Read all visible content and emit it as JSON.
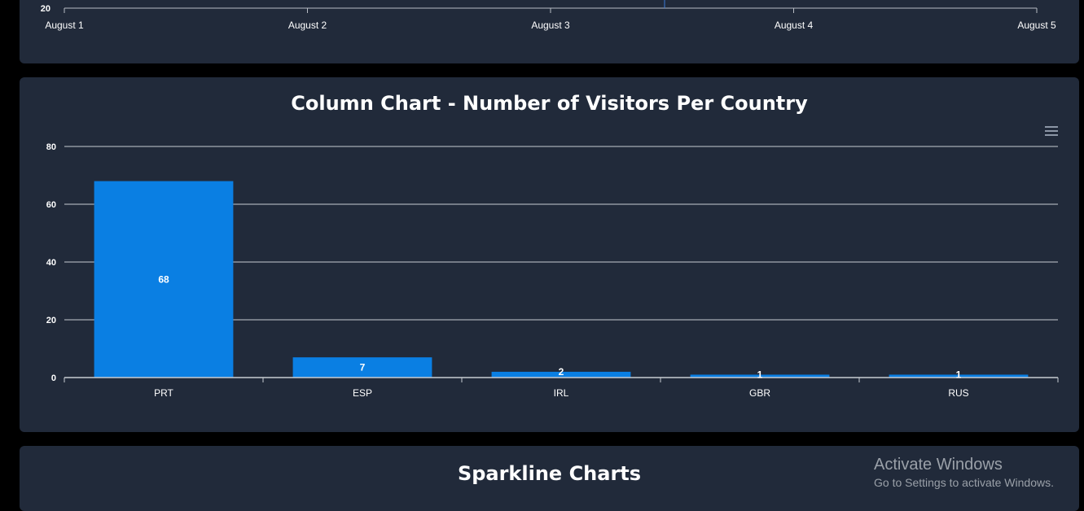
{
  "timeline_chart": {
    "y_tick_visible": "20",
    "x_ticks": [
      "August 1",
      "August 2",
      "August 3",
      "August 4",
      "August 5"
    ]
  },
  "column_chart": {
    "title": "Column Chart - Number of Visitors Per Country",
    "menu_icon": "hamburger-menu-icon"
  },
  "chart_data": {
    "type": "bar",
    "title": "Column Chart - Number of Visitors Per Country",
    "categories": [
      "PRT",
      "ESP",
      "IRL",
      "GBR",
      "RUS"
    ],
    "values": [
      68,
      7,
      2,
      1,
      1
    ],
    "y_ticks": [
      "0",
      "20",
      "40",
      "60",
      "80"
    ],
    "ylim": [
      0,
      80
    ],
    "xlabel": "",
    "ylabel": "",
    "grid": true,
    "bar_color": "#0a7fe3",
    "data_labels": true
  },
  "sparkline": {
    "title": "Sparkline Charts"
  },
  "watermark": {
    "line1": "Activate Windows",
    "line2": "Go to Settings to activate Windows."
  }
}
